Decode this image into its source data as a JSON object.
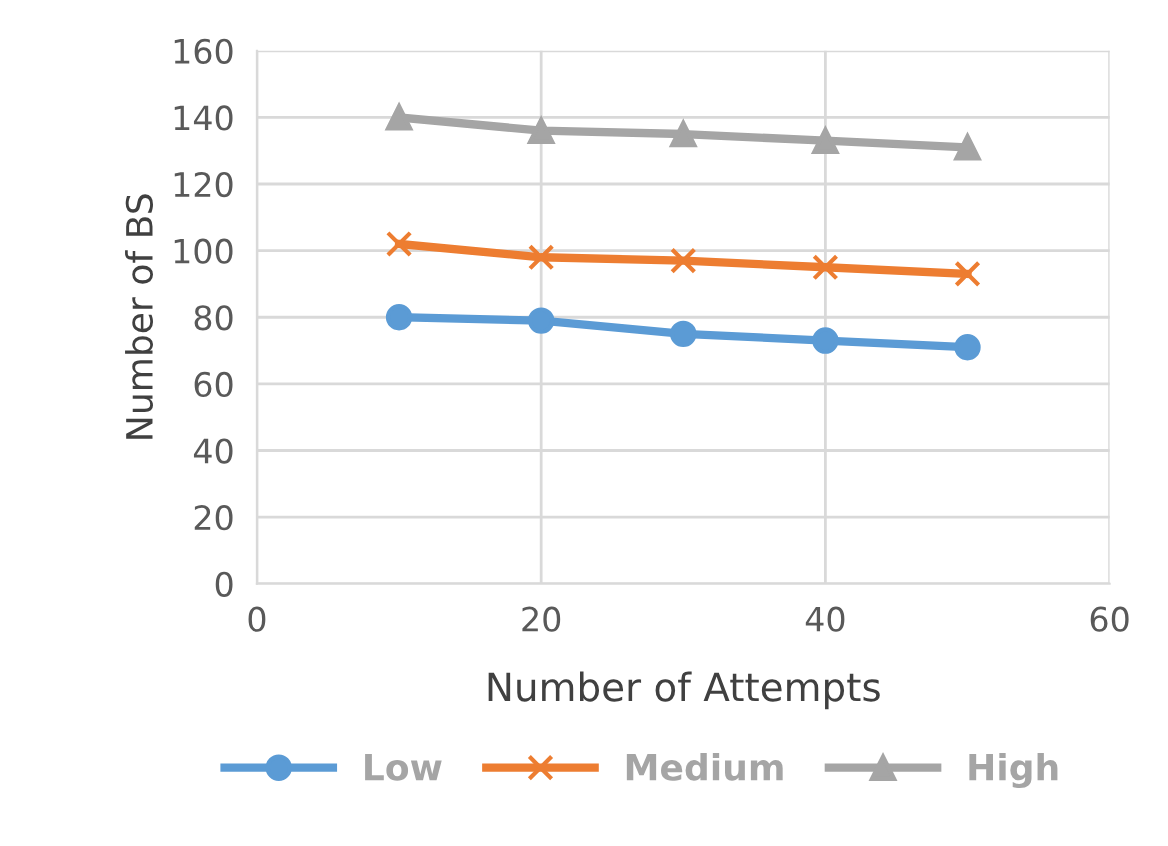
{
  "chart_data": {
    "type": "line",
    "xlabel": "Number of Attempts",
    "ylabel": "Number of BS",
    "x": [
      10,
      20,
      30,
      40,
      50
    ],
    "series": [
      {
        "name": "Low",
        "color": "#5b9bd5",
        "marker": "circle",
        "values": [
          80,
          79,
          75,
          73,
          71
        ]
      },
      {
        "name": "Medium",
        "color": "#ed7d31",
        "marker": "cross",
        "values": [
          102,
          98,
          97,
          95,
          93
        ]
      },
      {
        "name": "High",
        "color": "#a5a5a5",
        "marker": "triangle",
        "values": [
          140,
          136,
          135,
          133,
          131
        ]
      }
    ],
    "xlim": [
      0,
      60
    ],
    "xticks": [
      0,
      20,
      40,
      60
    ],
    "ylim": [
      0,
      160
    ],
    "yticks": [
      0,
      20,
      40,
      60,
      80,
      100,
      120,
      140,
      160
    ],
    "grid": true,
    "legend": "bottom",
    "line_style": "solid"
  }
}
